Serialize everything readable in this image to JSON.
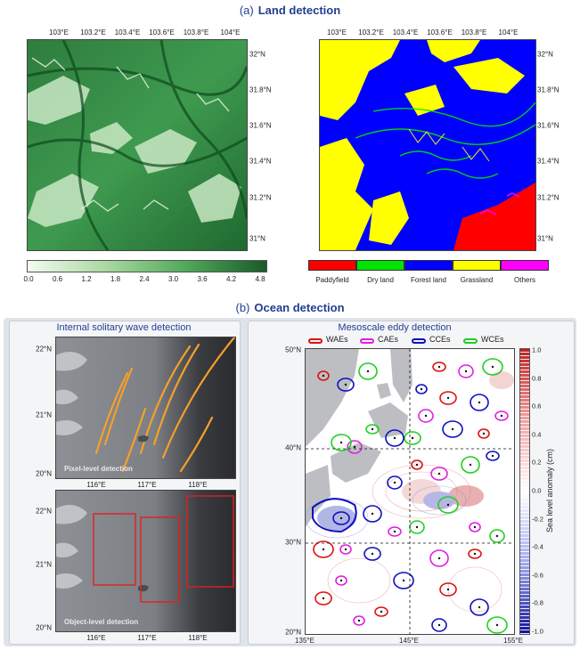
{
  "section_a": {
    "label": "(a)",
    "title": "Land detection"
  },
  "section_b": {
    "label": "(b)",
    "title": "Ocean detection"
  },
  "land": {
    "lon_ticks": [
      "103°E",
      "103.2°E",
      "103.4°E",
      "103.6°E",
      "103.8°E",
      "104°E"
    ],
    "lat_ticks": [
      "32°N",
      "31.8°N",
      "31.6°N",
      "31.4°N",
      "31.2°N",
      "31°N"
    ],
    "colorbar_ticks": [
      "0.0",
      "0.6",
      "1.2",
      "1.8",
      "2.4",
      "3.0",
      "3.6",
      "4.2",
      "4.8"
    ],
    "classes": [
      {
        "name": "Paddyfield",
        "color": "#ff0000"
      },
      {
        "name": "Dry land",
        "color": "#00e400"
      },
      {
        "name": "Forest land",
        "color": "#0000ff"
      },
      {
        "name": "Grassland",
        "color": "#ffff00"
      },
      {
        "name": "Others",
        "color": "#ff00ff"
      }
    ]
  },
  "isw": {
    "title": "Internal solitary wave detection",
    "lat_ticks": [
      "22°N",
      "21°N",
      "20°N"
    ],
    "lon_ticks": [
      "116°E",
      "117°E",
      "118°E"
    ],
    "pixel_label": "Pixel-level detection",
    "object_label": "Object-level detection",
    "wave_color": "#f5a02a",
    "box_color": "#e02020"
  },
  "eddy": {
    "title": "Mesoscale eddy detection",
    "legend": [
      {
        "name": "WAEs",
        "color": "#e01010"
      },
      {
        "name": "CAEs",
        "color": "#e020e0"
      },
      {
        "name": "CCEs",
        "color": "#1010c0"
      },
      {
        "name": "WCEs",
        "color": "#20d020"
      }
    ],
    "lat_ticks": [
      "50°N",
      "40°N",
      "30°N",
      "20°N"
    ],
    "lon_ticks": [
      "135°E",
      "145°E",
      "155°E"
    ],
    "colorbar_ticks": [
      "1.0",
      "0.8",
      "0.6",
      "0.4",
      "0.2",
      "0.0",
      "-0.2",
      "-0.4",
      "-0.6",
      "-0.8",
      "-1.0"
    ],
    "colorbar_label": "Sea level anomaly (cm)"
  }
}
